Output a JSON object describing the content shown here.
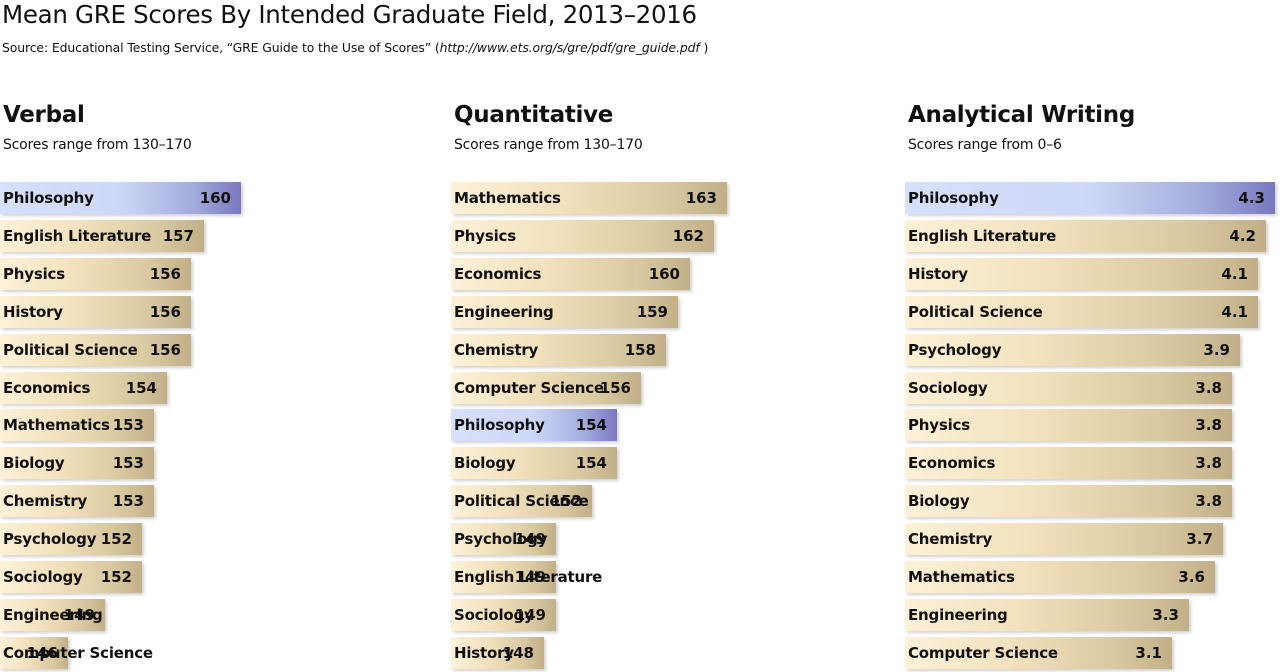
{
  "title": "Mean GRE Scores By Intended Graduate Field, 2013–2016",
  "source": {
    "prefix": "Source: Educational Testing Service, “GRE Guide to the Use of Scores” (",
    "url": "http://www.ets.org/s/gre/pdf/gre_guide.pdf",
    "suffix": " )"
  },
  "colors": {
    "bar": "#e8d5ad",
    "highlight": "#cdd7f7"
  },
  "chart_data": [
    {
      "type": "bar",
      "title": "Verbal",
      "subtitle": "Scores range from 130–170",
      "orientation": "horizontal",
      "highlight": "Philosophy",
      "categories": [
        "Philosophy",
        "English Literature",
        "Physics",
        "History",
        "Political Science",
        "Economics",
        "Mathematics",
        "Biology",
        "Chemistry",
        "Psychology",
        "Sociology",
        "Engineering",
        "Computer Science"
      ],
      "values": [
        160,
        157,
        156,
        156,
        156,
        154,
        153,
        153,
        153,
        152,
        152,
        149,
        146
      ]
    },
    {
      "type": "bar",
      "title": "Quantitative",
      "subtitle": "Scores range from 130–170",
      "orientation": "horizontal",
      "highlight": "Philosophy",
      "categories": [
        "Mathematics",
        "Physics",
        "Economics",
        "Engineering",
        "Chemistry",
        "Computer Science",
        "Philosophy",
        "Biology",
        "Political Science",
        "Psychology",
        "English Literature",
        "Sociology",
        "History"
      ],
      "values": [
        163,
        162,
        160,
        159,
        158,
        156,
        154,
        154,
        152,
        149,
        149,
        149,
        148
      ]
    },
    {
      "type": "bar",
      "title": "Analytical Writing",
      "subtitle": "Scores range from 0–6",
      "orientation": "horizontal",
      "highlight": "Philosophy",
      "categories": [
        "Philosophy",
        "English Literature",
        "History",
        "Political Science",
        "Psychology",
        "Sociology",
        "Physics",
        "Economics",
        "Biology",
        "Chemistry",
        "Mathematics",
        "Engineering",
        "Computer Science"
      ],
      "values": [
        4.3,
        4.2,
        4.1,
        4.1,
        3.9,
        3.8,
        3.8,
        3.8,
        3.8,
        3.7,
        3.6,
        3.3,
        3.1
      ]
    }
  ]
}
